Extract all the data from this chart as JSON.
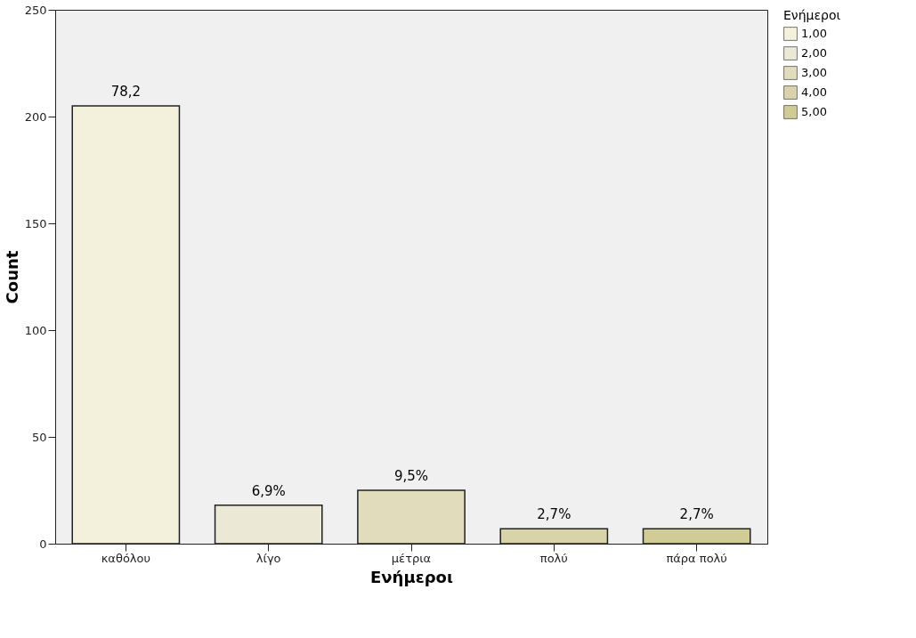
{
  "chart_data": {
    "type": "bar",
    "xlabel": "Ενήμεροι",
    "ylabel": "Count",
    "legend_title": "Ενήμεροι",
    "legend": "top right",
    "stacked": true,
    "categories": [
      "καθόλου",
      "λίγο",
      "μέτρια",
      "πολύ",
      "πάρα πολύ"
    ],
    "series": [
      {
        "name": "1,00",
        "color": "#f3f0dc",
        "values": [
          205,
          null,
          null,
          null,
          null
        ]
      },
      {
        "name": "2,00",
        "color": "#ebe8d6",
        "values": [
          null,
          18,
          null,
          null,
          null
        ]
      },
      {
        "name": "3,00",
        "color": "#e0dcbc",
        "values": [
          null,
          null,
          25,
          null,
          null
        ]
      },
      {
        "name": "4,00",
        "color": "#d8d3a8",
        "values": [
          null,
          null,
          null,
          7,
          null
        ]
      },
      {
        "name": "5,00",
        "color": "#d1cc96",
        "values": [
          null,
          null,
          null,
          null,
          7
        ]
      }
    ],
    "annotations": [
      "78,2",
      "6,9%",
      "9,5%",
      "2,7%",
      "2,7%"
    ],
    "ylim": [
      0,
      250
    ],
    "yticks": [
      0,
      50,
      100,
      150,
      200,
      250
    ]
  }
}
